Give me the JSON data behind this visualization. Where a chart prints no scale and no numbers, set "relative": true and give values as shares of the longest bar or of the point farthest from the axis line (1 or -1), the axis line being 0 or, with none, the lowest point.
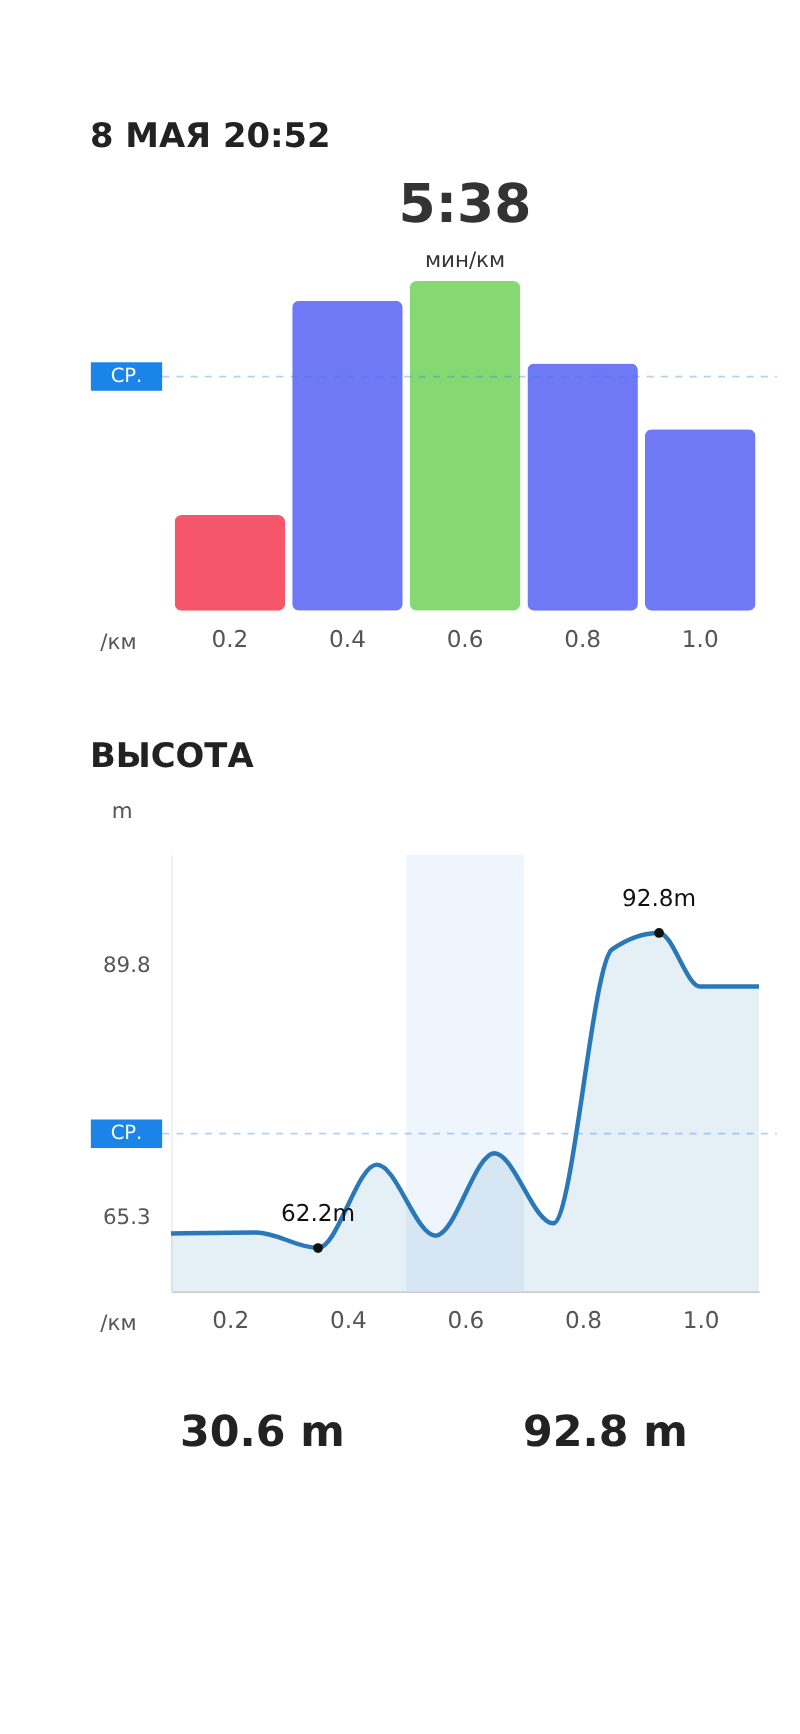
{
  "chart_data": [
    {
      "type": "bar",
      "title": "8 МАЯ 20:52",
      "categories": [
        "0.2",
        "0.4",
        "0.6",
        "0.8",
        "1.0"
      ],
      "values": [
        0.29,
        0.94,
        1,
        0.75,
        0.55
      ],
      "colors": [
        "#f5566a",
        "#6f78f5",
        "#86d872",
        "#6f78f5",
        "#6f78f5"
      ],
      "relative": true,
      "xlabel": "/км",
      "ref_lines": [
        {
          "axis": "y",
          "value": 0.71,
          "label": "СР.",
          "color": "#1a84e8"
        }
      ],
      "annotations": [
        {
          "text": "5:38",
          "x": "0.6",
          "y": 1
        },
        {
          "text": "мин/км",
          "x": "0.6",
          "y": 1
        }
      ]
    },
    {
      "type": "area",
      "title": "ВЫСОТА",
      "color": "#2a78b8",
      "xlabel": "/км",
      "ylabel": "m",
      "x": [
        0.1,
        0.245,
        0.35,
        0.45,
        0.55,
        0.65,
        0.75,
        0.85,
        0.93,
        1.0,
        1.1
      ],
      "values": [
        63.6,
        63.7,
        62.2,
        70.3,
        63.4,
        71.4,
        64.6,
        91.2,
        92.8,
        87.6,
        87.6
      ],
      "xlim": [
        0.1,
        1.1
      ],
      "xticks": [
        0.2,
        0.4,
        0.6,
        0.8,
        {
          "value": 1,
          "label": "1.0"
        }
      ],
      "ylim": [
        58,
        100.4
      ],
      "yticks": [
        65.3,
        89.8
      ],
      "ref_lines": [
        {
          "axis": "y",
          "value": 73.3,
          "label": "СР.",
          "color": "#1a84e8"
        }
      ],
      "bands": [
        {
          "axis": "x",
          "from": 0.5,
          "to": 0.7,
          "color": "#eef5fc"
        }
      ],
      "annotations": [
        {
          "text": "92.8m",
          "x": 0.93,
          "y": 92.8
        },
        {
          "text": "62.2m",
          "x": 0.35,
          "y": 62.2
        },
        "30.6 m",
        "92.8 m"
      ]
    }
  ]
}
